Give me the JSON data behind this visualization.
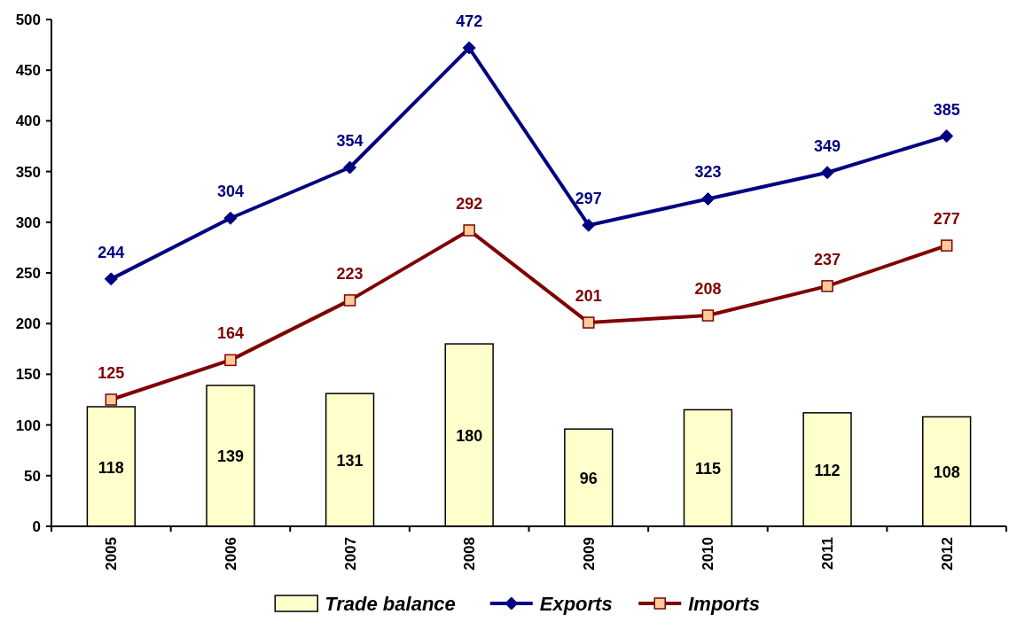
{
  "chart_data": {
    "type": "bar",
    "categories": [
      "2005",
      "2006",
      "2007",
      "2008",
      "2009",
      "2010",
      "2011",
      "2012"
    ],
    "series": [
      {
        "name": "Trade balance",
        "color": "#ffffcc",
        "values": [
          118,
          139,
          131,
          180,
          96,
          115,
          112,
          108
        ]
      },
      {
        "name": "Exports",
        "type": "line",
        "color": "#000080",
        "marker": "diamond",
        "values": [
          244,
          304,
          354,
          472,
          297,
          323,
          349,
          385
        ]
      },
      {
        "name": "Imports",
        "type": "line",
        "color": "#800000",
        "marker": "square",
        "values": [
          125,
          164,
          223,
          292,
          201,
          208,
          237,
          277
        ]
      }
    ],
    "ylim": [
      0,
      500
    ],
    "yticks": [
      0,
      50,
      100,
      150,
      200,
      250,
      300,
      350,
      400,
      450,
      500
    ],
    "grid": false,
    "legend": "bottom",
    "data_labels": true
  }
}
